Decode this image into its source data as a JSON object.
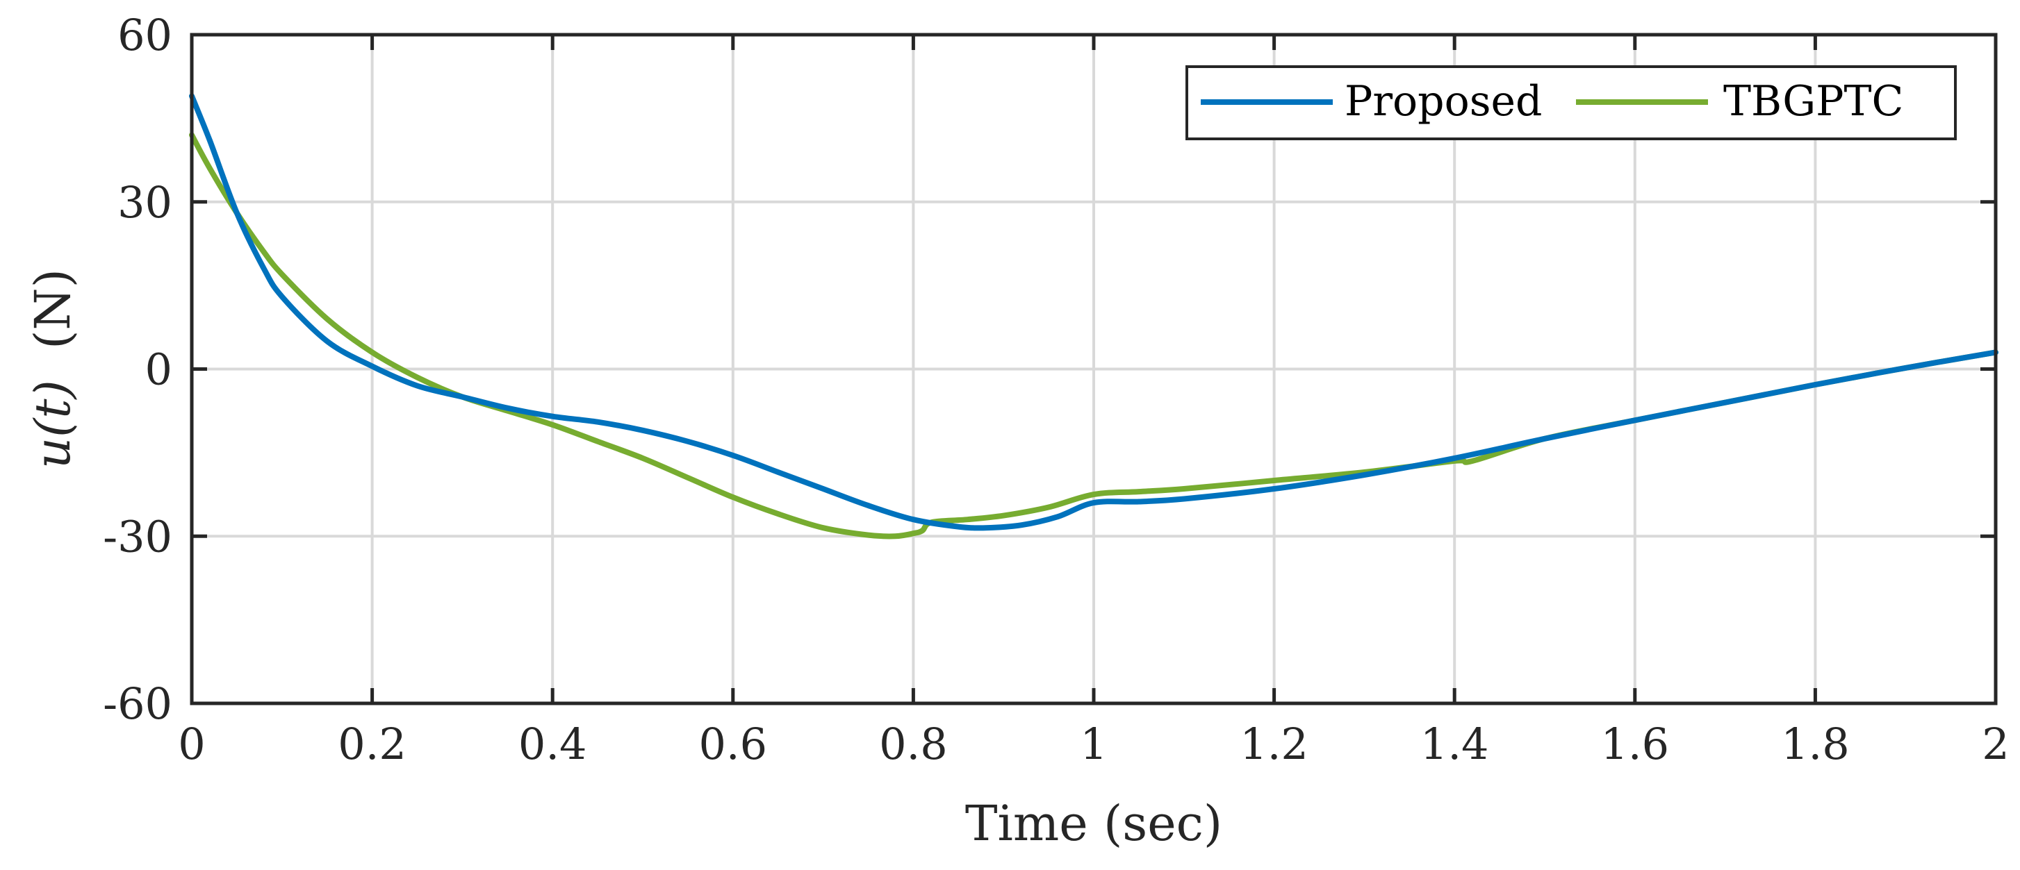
{
  "chart_data": {
    "type": "line",
    "title": "",
    "xlabel": "Time (sec)",
    "ylabel_math": "u(t)",
    "ylabel_unit": "(N)",
    "xlim": [
      0,
      2
    ],
    "ylim": [
      -60,
      60
    ],
    "xticks": [
      0,
      0.2,
      0.4,
      0.6,
      0.8,
      1,
      1.2,
      1.4,
      1.6,
      1.8,
      2
    ],
    "xtick_labels": [
      "0",
      "0.2",
      "0.4",
      "0.6",
      "0.8",
      "1",
      "1.2",
      "1.4",
      "1.6",
      "1.8",
      "2"
    ],
    "yticks": [
      60,
      30,
      0,
      -30,
      -60
    ],
    "ytick_labels": [
      "60",
      "30",
      "0",
      "-30",
      "-60"
    ],
    "grid": true,
    "legend_position": "top-right",
    "series": [
      {
        "name": "Proposed",
        "color": "#0072BD",
        "x": [
          0,
          0.02,
          0.05,
          0.08,
          0.1,
          0.15,
          0.2,
          0.25,
          0.3,
          0.35,
          0.4,
          0.45,
          0.5,
          0.55,
          0.6,
          0.65,
          0.7,
          0.75,
          0.8,
          0.85,
          0.88,
          0.92,
          0.96,
          1.0,
          1.05,
          1.1,
          1.2,
          1.3,
          1.4,
          1.5,
          1.6,
          1.7,
          1.8,
          1.9,
          2.0
        ],
        "y": [
          49,
          41,
          28,
          18,
          13,
          5,
          0.5,
          -3,
          -5,
          -7,
          -8.5,
          -9.5,
          -11,
          -13,
          -15.5,
          -18.5,
          -21.5,
          -24.5,
          -27,
          -28.3,
          -28.5,
          -28,
          -26.5,
          -24,
          -23.8,
          -23.3,
          -21.5,
          -19,
          -16,
          -12.5,
          -9.2,
          -6,
          -2.8,
          0.2,
          3
        ]
      },
      {
        "name": "TBGPTC",
        "color": "#77AC30",
        "x": [
          0,
          0.02,
          0.05,
          0.08,
          0.1,
          0.15,
          0.2,
          0.25,
          0.3,
          0.35,
          0.4,
          0.45,
          0.5,
          0.55,
          0.6,
          0.65,
          0.7,
          0.75,
          0.78,
          0.8,
          0.81,
          0.82,
          0.86,
          0.9,
          0.95,
          1.0,
          1.05,
          1.1,
          1.2,
          1.3,
          1.4,
          1.42,
          1.5,
          1.6,
          1.7,
          1.8,
          1.9,
          2.0
        ],
        "y": [
          42,
          36,
          28,
          21,
          17,
          9,
          3,
          -1.5,
          -5,
          -7.5,
          -10,
          -13,
          -16,
          -19.5,
          -23,
          -26,
          -28.5,
          -29.8,
          -30,
          -29.5,
          -29,
          -27.5,
          -27,
          -26.3,
          -24.8,
          -22.5,
          -22,
          -21.5,
          -20,
          -18.5,
          -16.5,
          -16.5,
          -12.5,
          -9.2,
          -6,
          -2.8,
          0.2,
          3
        ]
      }
    ]
  }
}
